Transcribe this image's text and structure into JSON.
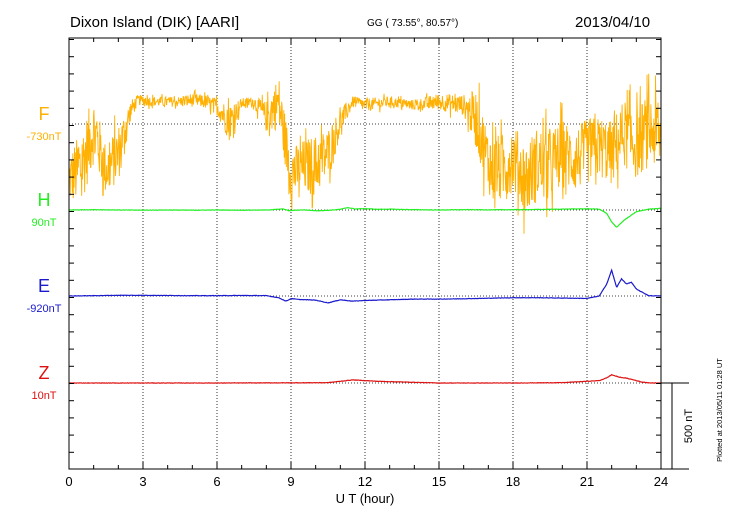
{
  "chart_data": {
    "type": "line",
    "title": "Dixon Island (DIK)  [AARI]",
    "coords": "GG ( 73.55°,  80.57°)",
    "date": "2013/04/10",
    "xlabel": "U T (hour)",
    "xlim": [
      0,
      24
    ],
    "x_ticks": [
      "0",
      "3",
      "6",
      "9",
      "12",
      "15",
      "18",
      "21",
      "24"
    ],
    "scale_label": "500 nT",
    "plotted_note": "Plotted at 2013/05/11 01:28 UT",
    "series": [
      {
        "name": "F",
        "baseline_label": "-730nT",
        "color": "#ffb000",
        "noisy": true,
        "x": [
          0,
          0.5,
          1.0,
          1.5,
          2.0,
          2.5,
          2.8,
          3.5,
          4.5,
          5.0,
          5.5,
          6.0,
          6.5,
          7.0,
          7.5,
          8.0,
          8.5,
          9.0,
          9.5,
          10.0,
          10.5,
          11.0,
          11.5,
          12.0,
          13.0,
          14.0,
          15.0,
          16.0,
          16.5,
          17.0,
          17.5,
          18.0,
          18.5,
          19.0,
          19.5,
          20.0,
          20.5,
          21.0,
          21.5,
          22.0,
          22.5,
          23.0,
          23.5,
          24.0
        ],
        "y": [
          -1050,
          -980,
          -760,
          -1000,
          -900,
          -650,
          -590,
          -600,
          -600,
          -590,
          -600,
          -630,
          -720,
          -610,
          -600,
          -690,
          -600,
          -1020,
          -980,
          -970,
          -900,
          -720,
          -600,
          -620,
          -600,
          -620,
          -600,
          -620,
          -700,
          -950,
          -1000,
          -920,
          -1050,
          -960,
          -980,
          -900,
          -940,
          -890,
          -860,
          -900,
          -780,
          -850,
          -760,
          -800
        ],
        "amplitude": [
          150,
          220,
          200,
          150,
          170,
          60,
          30,
          30,
          30,
          40,
          40,
          50,
          110,
          30,
          30,
          90,
          160,
          150,
          160,
          180,
          150,
          80,
          30,
          40,
          30,
          30,
          50,
          60,
          170,
          190,
          200,
          200,
          210,
          220,
          210,
          200,
          190,
          190,
          180,
          190,
          200,
          200,
          220,
          200
        ]
      },
      {
        "name": "H",
        "baseline_label": "90nT",
        "color": "#22ee22",
        "x": [
          0,
          1,
          2,
          3,
          4,
          5,
          6,
          7,
          8,
          8.7,
          8.9,
          9.1,
          9.5,
          10,
          10.5,
          11,
          11.3,
          11.6,
          12,
          12.5,
          13,
          13.5,
          14,
          15,
          16,
          17,
          18,
          19,
          20,
          21,
          21.5,
          21.8,
          22.0,
          22.2,
          22.5,
          23,
          23.5,
          24
        ],
        "y": [
          90,
          92,
          90,
          89,
          90,
          89,
          90,
          89,
          90,
          96,
          86,
          88,
          91,
          86,
          88,
          94,
          104,
          96,
          98,
          94,
          95,
          93,
          92,
          90,
          92,
          91,
          92,
          93,
          95,
          97,
          95,
          70,
          20,
          -10,
          30,
          80,
          95,
          100
        ]
      },
      {
        "name": "E",
        "baseline_label": "-920nT",
        "color": "#1a1acc",
        "x": [
          0,
          1,
          2,
          3,
          4,
          5,
          6,
          7,
          8,
          8.5,
          8.8,
          9.0,
          9.3,
          10.0,
          10.5,
          11.0,
          11.5,
          12,
          13,
          14,
          15,
          16,
          17,
          18,
          19,
          20,
          21,
          21.5,
          21.8,
          22.0,
          22.2,
          22.4,
          22.6,
          22.8,
          23,
          23.5,
          24
        ],
        "y": [
          -920,
          -918,
          -916,
          -916,
          -917,
          -918,
          -918,
          -917,
          -918,
          -930,
          -950,
          -935,
          -940,
          -944,
          -960,
          -942,
          -950,
          -946,
          -942,
          -938,
          -938,
          -936,
          -933,
          -930,
          -930,
          -932,
          -934,
          -920,
          -850,
          -770,
          -870,
          -820,
          -850,
          -840,
          -880,
          -918,
          -920
        ]
      },
      {
        "name": "Z",
        "baseline_label": "10nT",
        "color": "#dd1111",
        "x": [
          0,
          3,
          6,
          9,
          10.5,
          11.0,
          11.5,
          12.0,
          12.5,
          13.5,
          14.5,
          15,
          18,
          20,
          21,
          21.5,
          21.8,
          22.0,
          22.3,
          22.6,
          22.9,
          23.2,
          23.6,
          24
        ],
        "y": [
          10,
          10,
          10,
          11,
          12,
          20,
          28,
          24,
          20,
          16,
          12,
          10,
          10,
          12,
          20,
          24,
          40,
          58,
          44,
          38,
          28,
          16,
          10,
          10
        ]
      }
    ],
    "baselines_nT": [
      -730,
      90,
      -920,
      10
    ]
  }
}
